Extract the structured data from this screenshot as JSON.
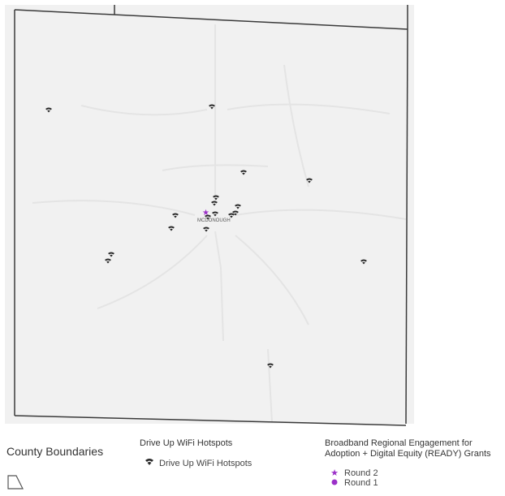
{
  "map": {
    "place_label": "MCDONOUGH",
    "wifi_points": [
      {
        "id": "wp1"
      },
      {
        "id": "wp2"
      },
      {
        "id": "wp3"
      },
      {
        "id": "wp4"
      },
      {
        "id": "wp5"
      },
      {
        "id": "wp6"
      },
      {
        "id": "wp7"
      },
      {
        "id": "wp8"
      },
      {
        "id": "wp9"
      },
      {
        "id": "wp10"
      },
      {
        "id": "wp11"
      },
      {
        "id": "wp12"
      },
      {
        "id": "wp13"
      },
      {
        "id": "wp14"
      },
      {
        "id": "wp15"
      },
      {
        "id": "wp16"
      },
      {
        "id": "wp17"
      },
      {
        "id": "wp18"
      }
    ],
    "colors": {
      "background": "#f1f1f1",
      "boundary": "#3a3a3a",
      "wifi": "#2b2b2b",
      "ready": "#9b30c8"
    }
  },
  "legend": {
    "county": {
      "title": "County Boundaries"
    },
    "wifi": {
      "title": "Drive Up WiFi Hotspots",
      "item": "Drive Up WiFi Hotspots"
    },
    "ready": {
      "title_line1": "Broadband Regional Engagement for",
      "title_line2": "Adoption + Digital Equity (READY) Grants",
      "round2": "Round 2",
      "round1": "Round 1"
    }
  }
}
